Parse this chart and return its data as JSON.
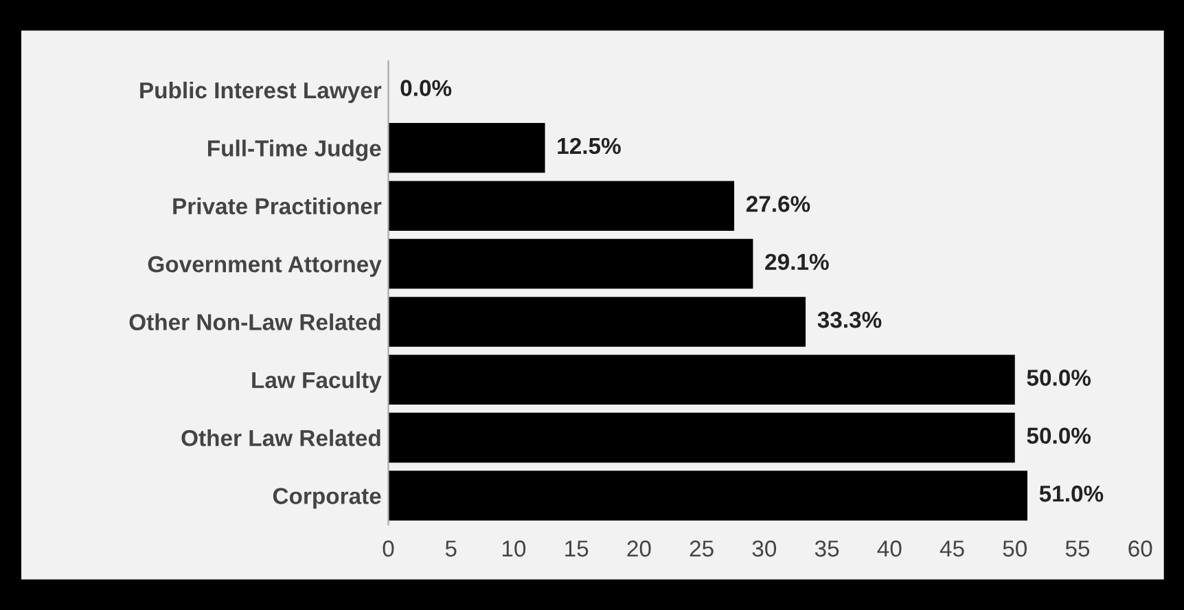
{
  "chart_data": {
    "type": "bar",
    "orientation": "horizontal",
    "color": "#000000",
    "categories": [
      "Public Interest Lawyer",
      "Full-Time Judge",
      "Private Practitioner",
      "Government Attorney",
      "Other Non-Law Related",
      "Law Faculty",
      "Other Law Related",
      "Corporate"
    ],
    "values": [
      0.0,
      12.5,
      27.6,
      29.1,
      33.3,
      50.0,
      50.0,
      51.0
    ],
    "value_labels": [
      "0.0%",
      "12.5%",
      "27.6%",
      "29.1%",
      "33.3%",
      "50.0%",
      "50.0%",
      "51.0%"
    ],
    "xlim": [
      0,
      60
    ],
    "xticks": [
      0,
      5,
      10,
      15,
      20,
      25,
      30,
      35,
      40,
      45,
      50,
      55,
      60
    ],
    "grid": false
  }
}
